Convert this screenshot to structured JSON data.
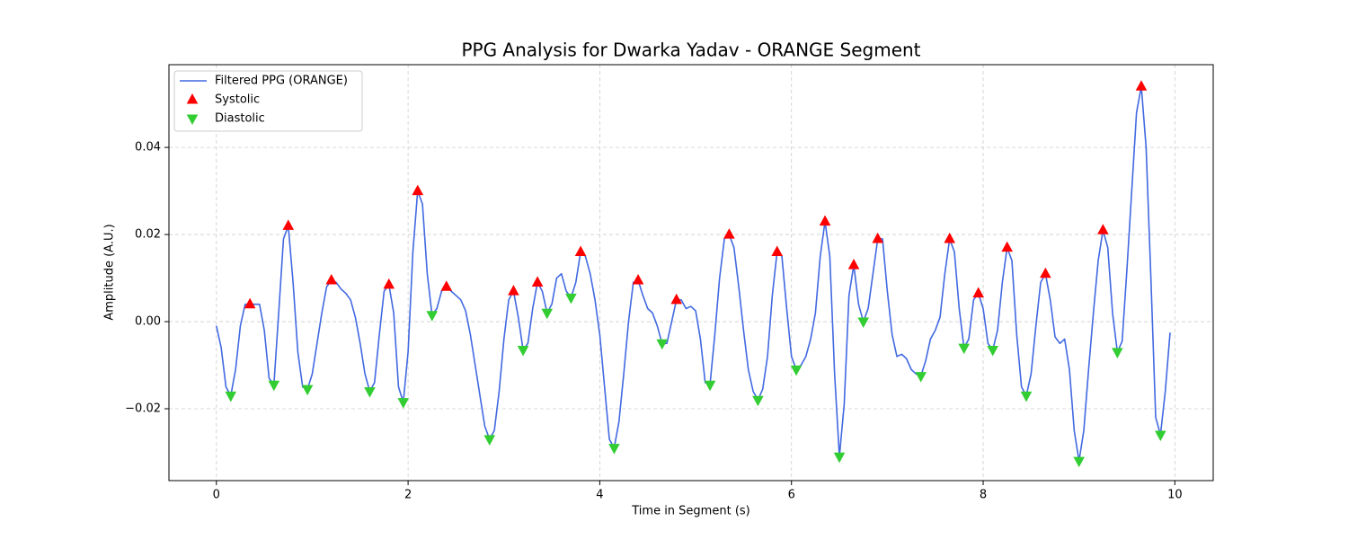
{
  "chart_data": {
    "type": "line",
    "title": "PPG Analysis for Dwarka Yadav - ORANGE Segment",
    "x_label": "Time in Segment (s)",
    "y_label": "Amplitude (A.U.)",
    "xlim": [
      -0.495,
      10.4
    ],
    "ylim": [
      -0.0365,
      0.059
    ],
    "xticks": [
      0,
      2,
      4,
      6,
      8,
      10
    ],
    "yticks": [
      {
        "value": -0.02,
        "label": "−0.02"
      },
      {
        "value": 0,
        "label": "0.00"
      },
      0.02,
      0.04
    ],
    "grid": true,
    "legend": "upper left",
    "series": [
      {
        "name": "Filtered PPG (ORANGE)",
        "type": "line",
        "color": "#4169e1",
        "x": [
          0,
          0.05,
          0.1,
          0.15,
          0.2,
          0.25,
          0.3,
          0.35,
          0.4,
          0.45,
          0.5,
          0.55,
          0.6,
          0.65,
          0.7,
          0.75,
          0.8,
          0.85,
          0.9,
          0.95,
          1,
          1.05,
          1.1,
          1.15,
          1.2,
          1.25,
          1.3,
          1.35,
          1.4,
          1.45,
          1.5,
          1.55,
          1.6,
          1.65,
          1.7,
          1.75,
          1.8,
          1.85,
          1.9,
          1.95,
          2,
          2.05,
          2.1,
          2.15,
          2.2,
          2.25,
          2.3,
          2.35,
          2.4,
          2.45,
          2.5,
          2.55,
          2.6,
          2.65,
          2.7,
          2.75,
          2.8,
          2.85,
          2.9,
          2.95,
          3,
          3.05,
          3.1,
          3.15,
          3.2,
          3.25,
          3.3,
          3.35,
          3.4,
          3.45,
          3.5,
          3.55,
          3.6,
          3.65,
          3.7,
          3.75,
          3.8,
          3.85,
          3.9,
          3.95,
          4,
          4.05,
          4.1,
          4.15,
          4.2,
          4.25,
          4.3,
          4.35,
          4.4,
          4.45,
          4.5,
          4.55,
          4.6,
          4.65,
          4.7,
          4.75,
          4.8,
          4.85,
          4.9,
          4.95,
          5,
          5.05,
          5.1,
          5.15,
          5.2,
          5.25,
          5.3,
          5.35,
          5.4,
          5.45,
          5.5,
          5.55,
          5.6,
          5.65,
          5.7,
          5.75,
          5.8,
          5.85,
          5.9,
          5.95,
          6,
          6.05,
          6.1,
          6.15,
          6.2,
          6.25,
          6.3,
          6.35,
          6.4,
          6.45,
          6.5,
          6.55,
          6.6,
          6.65,
          6.7,
          6.75,
          6.8,
          6.85,
          6.9,
          6.95,
          7,
          7.05,
          7.1,
          7.15,
          7.2,
          7.25,
          7.3,
          7.35,
          7.4,
          7.45,
          7.5,
          7.55,
          7.6,
          7.65,
          7.7,
          7.75,
          7.8,
          7.85,
          7.9,
          7.95,
          8,
          8.05,
          8.1,
          8.15,
          8.2,
          8.25,
          8.3,
          8.35,
          8.4,
          8.45,
          8.5,
          8.55,
          8.6,
          8.65,
          8.7,
          8.75,
          8.8,
          8.85,
          8.9,
          8.95,
          9,
          9.05,
          9.1,
          9.15,
          9.2,
          9.25,
          9.3,
          9.35,
          9.4,
          9.45,
          9.5,
          9.55,
          9.6,
          9.65,
          9.7,
          9.75,
          9.8,
          9.85,
          9.9,
          9.95
        ],
        "values": [
          -0.001,
          -0.006,
          -0.015,
          -0.017,
          -0.011,
          -0.001,
          0.004,
          0.004,
          0.004,
          0.004,
          -0.002,
          -0.013,
          -0.0145,
          0.002,
          0.019,
          0.022,
          0.009,
          -0.007,
          -0.015,
          -0.0155,
          -0.012,
          -0.005,
          0.002,
          0.008,
          0.0095,
          0.009,
          0.0075,
          0.0065,
          0.005,
          0.001,
          -0.005,
          -0.012,
          -0.016,
          -0.014,
          -0.003,
          0.007,
          0.0085,
          0.002,
          -0.015,
          -0.0185,
          -0.007,
          0.016,
          0.03,
          0.027,
          0.011,
          0.0015,
          0.003,
          0.007,
          0.008,
          0.007,
          0.006,
          0.005,
          0.0025,
          -0.003,
          -0.01,
          -0.017,
          -0.024,
          -0.027,
          -0.025,
          -0.016,
          -0.004,
          0.005,
          0.007,
          0.001,
          -0.0065,
          -0.005,
          0.003,
          0.009,
          0.007,
          0.002,
          0.004,
          0.01,
          0.011,
          0.007,
          0.0055,
          0.009,
          0.016,
          0.015,
          0.011,
          0.005,
          -0.003,
          -0.015,
          -0.027,
          -0.029,
          -0.023,
          -0.012,
          0.0,
          0.009,
          0.0095,
          0.006,
          0.003,
          0.002,
          -0.001,
          -0.005,
          -0.005,
          0.0,
          0.005,
          0.005,
          0.003,
          0.0035,
          0.0025,
          -0.004,
          -0.014,
          -0.0145,
          -0.003,
          0.01,
          0.019,
          0.02,
          0.017,
          0.008,
          -0.002,
          -0.011,
          -0.016,
          -0.018,
          -0.0155,
          -0.008,
          0.006,
          0.016,
          0.015,
          0.003,
          -0.008,
          -0.011,
          -0.01,
          -0.008,
          -0.004,
          0.002,
          0.015,
          0.023,
          0.015,
          -0.012,
          -0.031,
          -0.019,
          0.006,
          0.013,
          0.004,
          0.0,
          0.003,
          0.011,
          0.019,
          0.019,
          0.007,
          -0.003,
          -0.008,
          -0.0075,
          -0.0085,
          -0.011,
          -0.012,
          -0.0125,
          -0.009,
          -0.004,
          -0.002,
          0.001,
          0.011,
          0.019,
          0.016,
          0.003,
          -0.006,
          -0.004,
          0.005,
          0.0065,
          0.003,
          -0.005,
          -0.0065,
          -0.002,
          0.009,
          0.017,
          0.014,
          -0.003,
          -0.015,
          -0.017,
          -0.012,
          -0.001,
          0.009,
          0.011,
          0.005,
          -0.0035,
          -0.005,
          -0.004,
          -0.011,
          -0.025,
          -0.032,
          -0.025,
          -0.011,
          0.002,
          0.014,
          0.021,
          0.017,
          0.002,
          -0.007,
          -0.0045,
          0.012,
          0.03,
          0.048,
          0.054,
          0.04,
          0.01,
          -0.022,
          -0.026,
          -0.016,
          -0.0025
        ]
      },
      {
        "name": "Systolic",
        "type": "scatter",
        "marker": "triangle-up",
        "color": "#ff0000",
        "x": [
          0.35,
          0.75,
          1.2,
          1.8,
          2.1,
          2.4,
          3.1,
          3.35,
          3.8,
          4.4,
          4.8,
          5.35,
          5.85,
          6.35,
          6.65,
          6.9,
          7.65,
          7.95,
          8.25,
          8.65,
          9.25,
          9.65
        ],
        "values": [
          0.004,
          0.022,
          0.0095,
          0.0085,
          0.03,
          0.008,
          0.007,
          0.009,
          0.016,
          0.0095,
          0.005,
          0.02,
          0.016,
          0.023,
          0.013,
          0.019,
          0.019,
          0.0065,
          0.017,
          0.011,
          0.021,
          0.054
        ]
      },
      {
        "name": "Diastolic",
        "type": "scatter",
        "marker": "triangle-down",
        "color": "#32cd32",
        "x": [
          0.15,
          0.6,
          0.95,
          1.6,
          1.95,
          2.25,
          2.85,
          3.2,
          3.45,
          3.7,
          4.15,
          4.65,
          5.15,
          5.65,
          6.05,
          6.5,
          6.75,
          7.35,
          7.8,
          8.1,
          8.45,
          9.0,
          9.4,
          9.85
        ],
        "values": [
          -0.017,
          -0.0145,
          -0.0155,
          -0.016,
          -0.0185,
          0.0015,
          -0.027,
          -0.0065,
          0.002,
          0.0055,
          -0.029,
          -0.005,
          -0.0145,
          -0.018,
          -0.011,
          -0.031,
          0.0,
          -0.0125,
          -0.006,
          -0.0065,
          -0.017,
          -0.032,
          -0.007,
          -0.026
        ]
      }
    ]
  }
}
